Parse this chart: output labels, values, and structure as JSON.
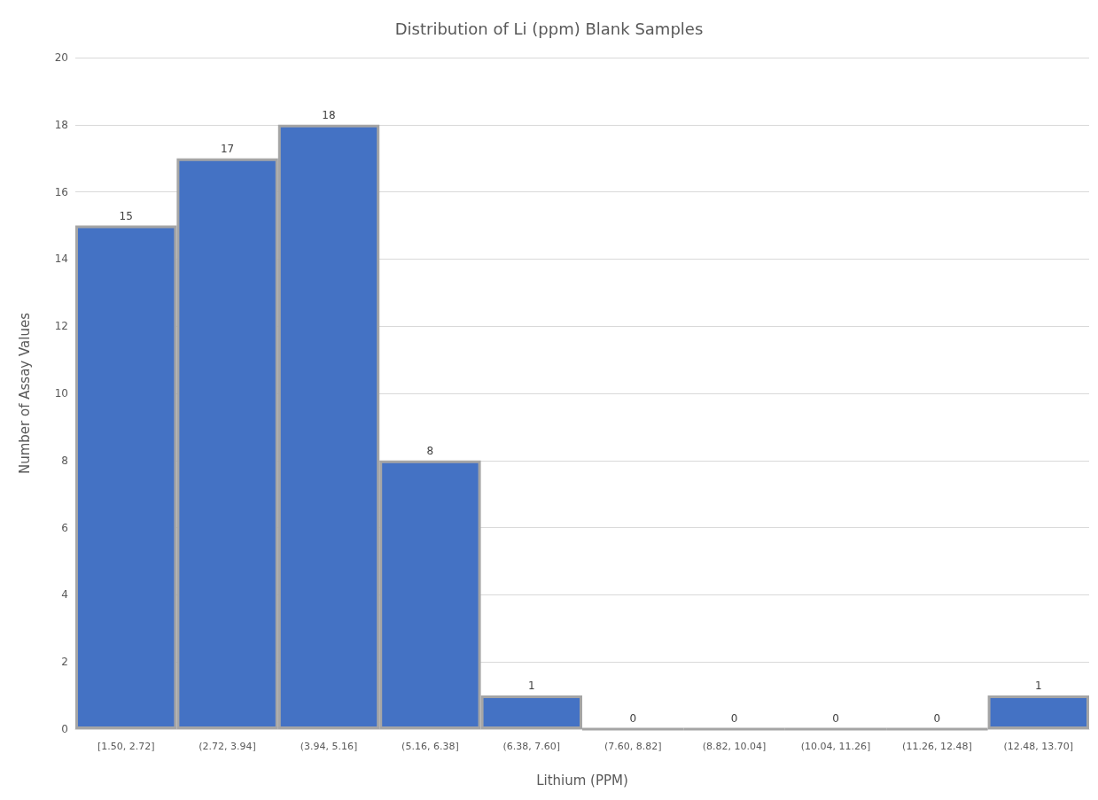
{
  "chart_data": {
    "type": "bar",
    "title": "Distribution of Li (ppm) Blank Samples",
    "xlabel": "Lithium (PPM)",
    "ylabel": "Number of Assay Values",
    "categories": [
      "[1.50, 2.72]",
      "(2.72, 3.94]",
      "(3.94, 5.16]",
      "(5.16, 6.38]",
      "(6.38, 7.60]",
      "(7.60, 8.82]",
      "(8.82, 10.04]",
      "(10.04, 11.26]",
      "(11.26, 12.48]",
      "(12.48, 13.70]"
    ],
    "values": [
      15,
      17,
      18,
      8,
      1,
      0,
      0,
      0,
      0,
      1
    ],
    "color": "#4472c4",
    "data_labels": true,
    "grid": "y",
    "ylim": [
      0,
      20
    ],
    "yticks": [
      0,
      2,
      4,
      6,
      8,
      10,
      12,
      14,
      16,
      18,
      20
    ]
  }
}
